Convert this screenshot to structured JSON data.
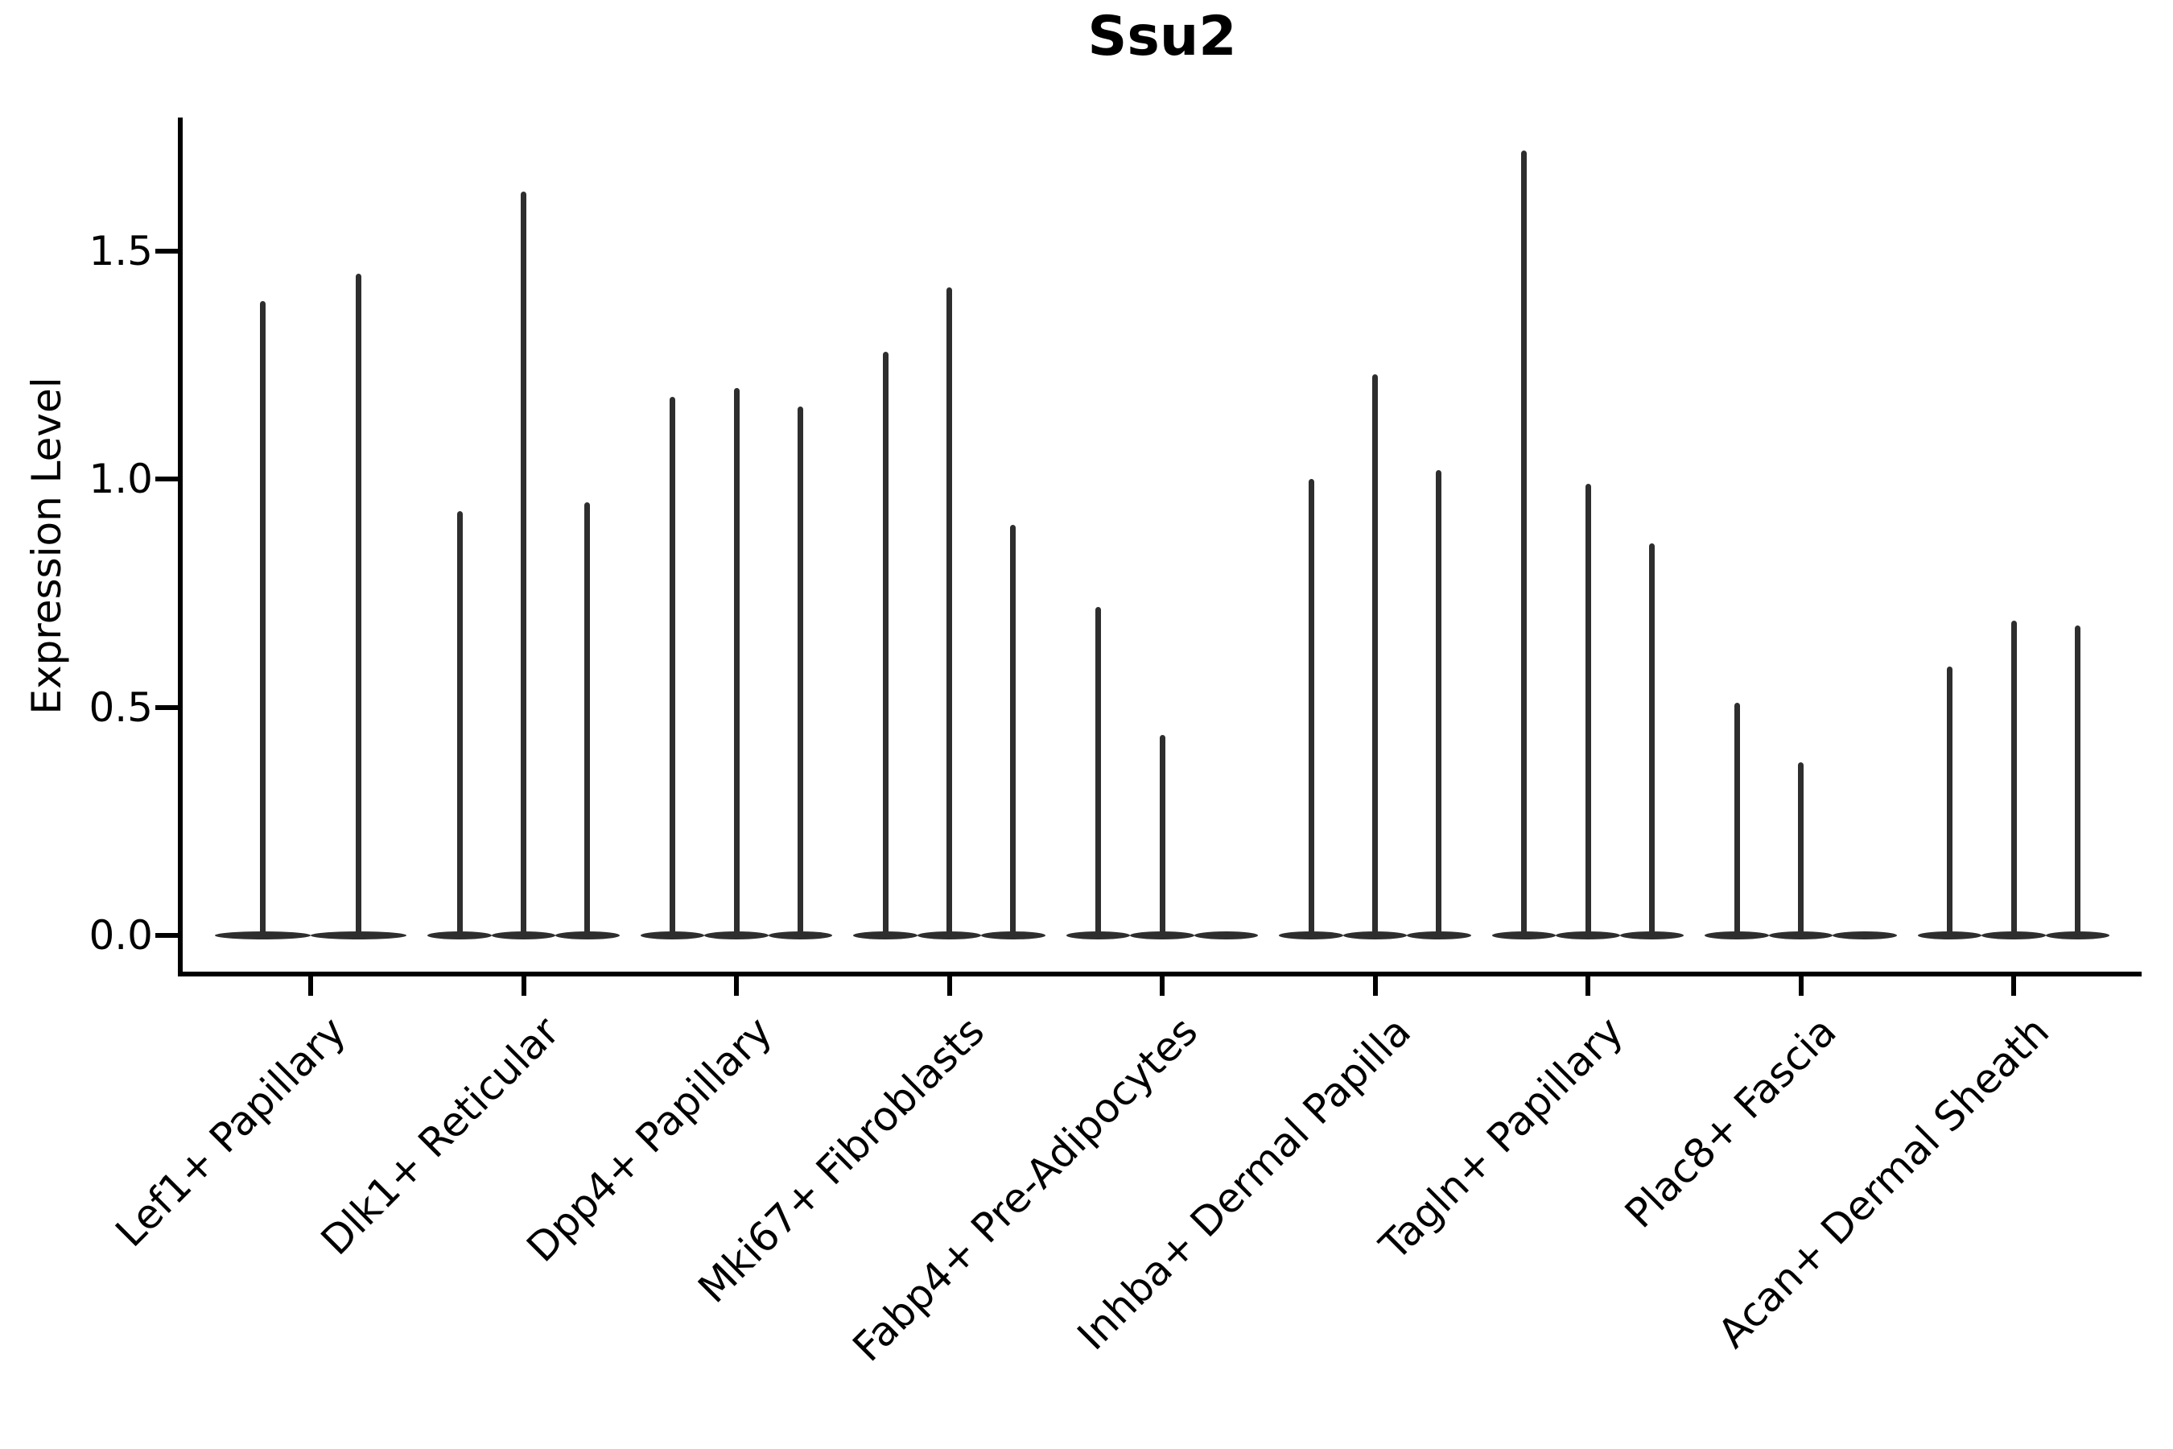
{
  "title": "Ssu2",
  "y_axis": {
    "label": "Expression Level",
    "tick_labels": [
      "0.0",
      "0.5",
      "1.0",
      "1.5"
    ]
  },
  "colors": {
    "violin": "#2e2e2e",
    "axis": "#000000",
    "text": "#000000",
    "background": "#ffffff"
  },
  "chart_data": {
    "type": "violin",
    "title": "Ssu2",
    "xlabel": "",
    "ylabel": "Expression Level",
    "y_ticks": [
      0.0,
      0.5,
      1.0,
      1.5
    ],
    "ylim": [
      -0.09,
      1.79
    ],
    "grid": false,
    "legend": "none",
    "note": "Needle-thin violins: density concentrated at 0 forms a flat foot on the baseline; a thin spike rises to each violin's maximum expression. Groups with a 0.0 entry show a flat foot segment with no spike.",
    "categories": [
      "Lef1+ Papillary",
      "Dlk1+ Reticular",
      "Dpp4+ Papillary",
      "Mki67+ Fibroblasts",
      "Fabp4+ Pre-Adipocytes",
      "Inhba+ Dermal Papilla",
      "Tagln+ Papillary",
      "Plac8+ Fascia",
      "Acan+ Dermal Sheath"
    ],
    "groups": [
      {
        "label": "Lef1+ Papillary",
        "violin_max_expression": [
          1.39,
          1.45
        ]
      },
      {
        "label": "Dlk1+ Reticular",
        "violin_max_expression": [
          0.93,
          1.63,
          0.95
        ]
      },
      {
        "label": "Dpp4+ Papillary",
        "violin_max_expression": [
          1.18,
          1.2,
          1.16
        ]
      },
      {
        "label": "Mki67+ Fibroblasts",
        "violin_max_expression": [
          1.28,
          1.42,
          0.9
        ]
      },
      {
        "label": "Fabp4+ Pre-Adipocytes",
        "violin_max_expression": [
          0.72,
          0.44,
          0.0
        ]
      },
      {
        "label": "Inhba+ Dermal Papilla",
        "violin_max_expression": [
          1.0,
          1.23,
          1.02
        ]
      },
      {
        "label": "Tagln+ Papillary",
        "violin_max_expression": [
          1.72,
          0.99,
          0.86
        ]
      },
      {
        "label": "Plac8+ Fascia",
        "violin_max_expression": [
          0.51,
          0.38,
          0.0
        ]
      },
      {
        "label": "Acan+ Dermal Sheath",
        "violin_max_expression": [
          0.59,
          0.69,
          0.68
        ]
      }
    ]
  }
}
